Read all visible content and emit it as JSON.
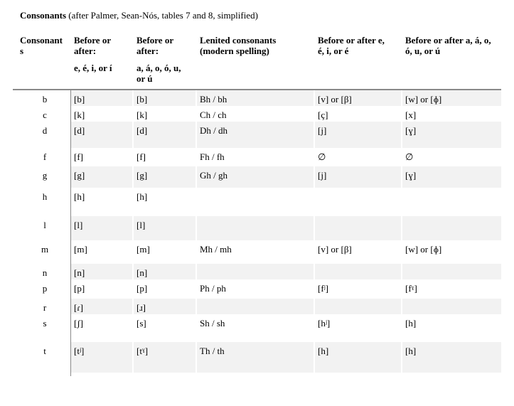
{
  "title": {
    "bold": "Consonants",
    "rest": " (after Palmer, Sean-Nós, tables 7 and 8, simplified)"
  },
  "table": {
    "header": {
      "cols": [
        {
          "lines": [
            "Consonant",
            "s"
          ]
        },
        {
          "lines": [
            "Before or",
            "after:"
          ],
          "sub": [
            "e, é, i, or í"
          ]
        },
        {
          "lines": [
            "Before or",
            "after:"
          ],
          "sub": [
            "a, á, o, ó, u,",
            "or ú"
          ]
        },
        {
          "lines": [
            "Lenited consonants",
            "(modern spelling)"
          ]
        },
        {
          "lines": [
            "Before or after e,",
            "é, i, or é"
          ]
        },
        {
          "lines": [
            "Before or after a, á, o,",
            "ó, u, or ú"
          ]
        }
      ]
    },
    "rows": [
      {
        "letter": "b",
        "cells": [
          "[b]",
          "[b]",
          "Bh / bh",
          "[v] or [β]",
          "[w] or [ɸ]"
        ]
      },
      {
        "letter": "c",
        "cells": [
          "[k]",
          "[k]",
          "Ch / ch",
          "[ç]",
          "[x]"
        ]
      },
      {
        "letter": "d",
        "cells": [
          "[d]",
          "[d]",
          "Dh / dh",
          "[j]",
          "[ɣ]"
        ]
      },
      {
        "letter": "f",
        "cells": [
          "[f]",
          "[f]",
          "Fh / fh",
          "∅",
          "∅"
        ]
      },
      {
        "letter": "g",
        "cells": [
          "[g]",
          "[g]",
          "Gh / gh",
          "[j]",
          "[ɣ]"
        ]
      },
      {
        "letter": "h",
        "cells": [
          "[h]",
          "[h]",
          "",
          "",
          ""
        ]
      },
      {
        "letter": "l",
        "cells": [
          "[l]",
          "[l]",
          "",
          "",
          ""
        ]
      },
      {
        "letter": "m",
        "cells": [
          "[m]",
          "[m]",
          "Mh / mh",
          "[v] or [β]",
          "[w] or [ɸ]"
        ]
      },
      {
        "letter": "n",
        "cells": [
          "[n]",
          "[n]",
          "",
          "",
          ""
        ]
      },
      {
        "letter": "p",
        "cells": [
          "[p]",
          "[p]",
          "Ph / ph",
          "[fʲ]",
          "[fˠ]"
        ]
      },
      {
        "letter": "r",
        "cells": [
          "[ɾ]",
          "[ɹ]",
          "",
          "",
          ""
        ]
      },
      {
        "letter": "s",
        "cells": [
          "[ʃ]",
          "[s]",
          "Sh / sh",
          "[hʲ]",
          "[h]"
        ]
      },
      {
        "letter": "t",
        "cells": [
          "[tʲ]",
          "[tˠ]",
          "Th / th",
          "[h]",
          "[h]"
        ]
      }
    ]
  },
  "colors": {
    "stripe": "#f2f2f2",
    "rule": "#8a8a8a",
    "text": "#000000"
  }
}
